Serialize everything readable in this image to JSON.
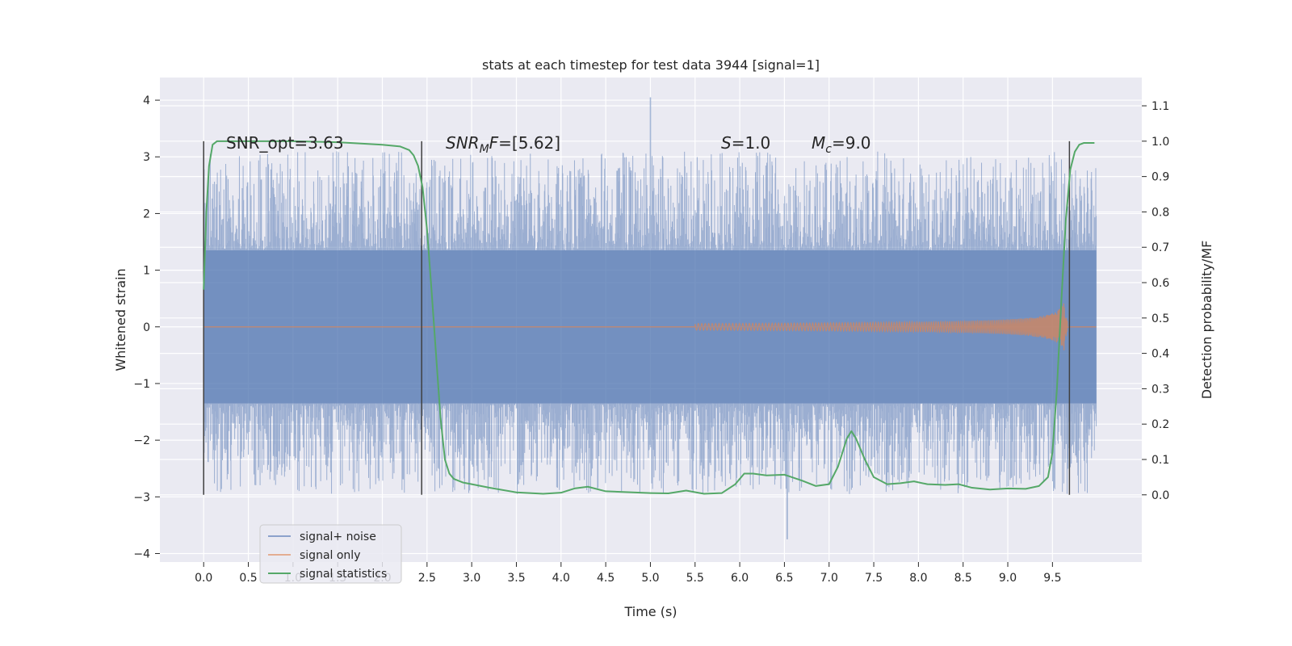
{
  "chart_data": {
    "type": "line",
    "title": "stats at each timestep for test data 3944 [signal=1]",
    "xlabel": "Time (s)",
    "ylabel_left": "Whitened strain",
    "ylabel_right": "Detection probability/MF",
    "xlim": [
      -0.49,
      10.5
    ],
    "ylim_left": [
      -4.15,
      4.4
    ],
    "ylim_right": [
      -0.19,
      1.18
    ],
    "x_ticks": [
      "0.0",
      "0.5",
      "1.0",
      "1.5",
      "2.0",
      "2.5",
      "3.0",
      "3.5",
      "4.0",
      "4.5",
      "5.0",
      "5.5",
      "6.0",
      "6.5",
      "7.0",
      "7.5",
      "8.0",
      "8.5",
      "9.0",
      "9.5"
    ],
    "y_ticks_left": [
      "4",
      "3",
      "2",
      "1",
      "0",
      "−1",
      "−2",
      "−3",
      "−4"
    ],
    "y_ticks_right": [
      "1.1",
      "1.0",
      "0.9",
      "0.8",
      "0.7",
      "0.6",
      "0.5",
      "0.4",
      "0.3",
      "0.2",
      "0.1",
      "0.0"
    ],
    "grid": true,
    "legend_position": "lower-left",
    "colors": {
      "background": "#eaeaf2",
      "grid": "#ffffff",
      "noise": "#4c72b0",
      "signal": "#dd8452",
      "stats": "#55a868",
      "marker": "#404040"
    },
    "annotations": [
      {
        "text": "SNR_opt=3.63"
      },
      {
        "text": "SNRMF=[5.62]",
        "math_main": "SNR",
        "math_sub": "M",
        "math_rest": "F=[5.62]"
      },
      {
        "text": "S=1.0",
        "math_main": "S",
        "math_rest": "=1.0"
      },
      {
        "text": "Mc=9.0",
        "math_main": "M",
        "math_sub": "c",
        "math_rest": "=9.0"
      }
    ],
    "vertical_markers_x": [
      0.0,
      2.44,
      9.69
    ],
    "noise_band": {
      "x_start": 0.0,
      "x_end": 9.99,
      "dense_half_width": 1.35,
      "max_peak": 4.05,
      "min_trough": -3.75
    },
    "signal_chirp": {
      "x_start": 5.5,
      "x_merger": 9.63,
      "x_end": 9.68,
      "peak_amplitude": 0.45
    },
    "series": [
      {
        "name": "signal+ noise",
        "style": "noise-band"
      },
      {
        "name": "signal only",
        "style": "chirp"
      },
      {
        "name": "signal statistics",
        "x": [
          0.0,
          0.03,
          0.06,
          0.1,
          0.15,
          0.2,
          0.3,
          0.5,
          1.0,
          1.5,
          2.0,
          2.2,
          2.3,
          2.35,
          2.4,
          2.45,
          2.5,
          2.55,
          2.6,
          2.65,
          2.7,
          2.75,
          2.8,
          2.9,
          3.0,
          3.2,
          3.5,
          3.8,
          4.0,
          4.15,
          4.3,
          4.5,
          5.0,
          5.2,
          5.4,
          5.6,
          5.8,
          5.95,
          6.05,
          6.15,
          6.3,
          6.5,
          6.7,
          6.85,
          7.0,
          7.1,
          7.2,
          7.25,
          7.3,
          7.4,
          7.5,
          7.65,
          7.8,
          7.95,
          8.1,
          8.3,
          8.45,
          8.6,
          8.8,
          9.0,
          9.2,
          9.35,
          9.45,
          9.5,
          9.55,
          9.6,
          9.65,
          9.7,
          9.75,
          9.8,
          9.85,
          9.9,
          9.97
        ],
        "y": [
          0.58,
          0.8,
          0.93,
          0.99,
          1.0,
          1.0,
          1.0,
          1.0,
          1.0,
          0.997,
          0.99,
          0.985,
          0.975,
          0.96,
          0.93,
          0.87,
          0.75,
          0.58,
          0.4,
          0.22,
          0.1,
          0.06,
          0.045,
          0.035,
          0.03,
          0.02,
          0.007,
          0.003,
          0.006,
          0.018,
          0.023,
          0.01,
          0.005,
          0.004,
          0.012,
          0.003,
          0.005,
          0.03,
          0.06,
          0.06,
          0.055,
          0.057,
          0.04,
          0.025,
          0.03,
          0.08,
          0.16,
          0.18,
          0.16,
          0.1,
          0.05,
          0.03,
          0.033,
          0.038,
          0.03,
          0.028,
          0.03,
          0.02,
          0.015,
          0.018,
          0.017,
          0.025,
          0.05,
          0.12,
          0.3,
          0.55,
          0.78,
          0.92,
          0.97,
          0.99,
          0.995,
          0.995,
          0.995
        ]
      }
    ]
  }
}
